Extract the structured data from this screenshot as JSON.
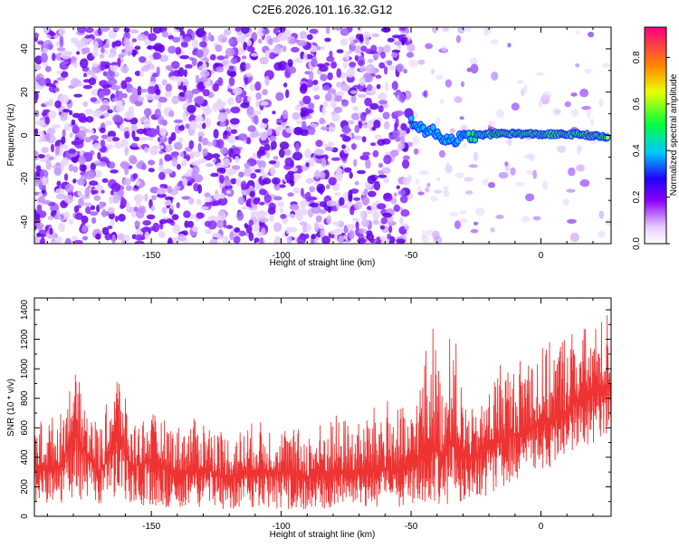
{
  "title": "C2E6.2026.101.16.32.G12",
  "chart_data": [
    {
      "type": "heatmap",
      "name": "spectrogram",
      "xlabel": "Height of straight line (km)",
      "ylabel": "Frequency (Hz)",
      "xlim": [
        -195,
        27
      ],
      "ylim": [
        -50,
        50
      ],
      "xticks": [
        "-150",
        "-100",
        "-50",
        "0"
      ],
      "yticks": [
        "40",
        "20",
        "0",
        "-20",
        "-40"
      ],
      "colorbar": {
        "label": "Normalized spectral amplitude",
        "range": [
          0,
          0.93
        ],
        "ticks": [
          "0.0",
          "0.2",
          "0.4",
          "0.6",
          "0.8"
        ]
      },
      "signal_track": [
        {
          "x": -50,
          "y": 7
        },
        {
          "x": -46,
          "y": 3
        },
        {
          "x": -42,
          "y": 2
        },
        {
          "x": -38,
          "y": -1
        },
        {
          "x": -34,
          "y": -2
        },
        {
          "x": -30,
          "y": -1
        },
        {
          "x": -25,
          "y": 0
        },
        {
          "x": -15,
          "y": 1
        },
        {
          "x": 0,
          "y": 0.5
        },
        {
          "x": 15,
          "y": 0.5
        },
        {
          "x": 26,
          "y": -1
        }
      ]
    },
    {
      "type": "line",
      "name": "snr",
      "xlabel": "Height of straight line (km)",
      "ylabel": "SNR (10 * v/v)",
      "xlim": [
        -195,
        27
      ],
      "ylim": [
        0,
        1480
      ],
      "xticks": [
        "-150",
        "-100",
        "-50",
        "0"
      ],
      "yticks": [
        "0",
        "200",
        "400",
        "600",
        "800",
        "1000",
        "1200",
        "1400"
      ],
      "color": "#ee3333",
      "series": [
        {
          "name": "SNR envelope",
          "x": [
            -195,
            -185,
            -180,
            -175,
            -170,
            -167,
            -163,
            -158,
            -150,
            -140,
            -130,
            -120,
            -110,
            -100,
            -90,
            -80,
            -70,
            -60,
            -55,
            -50,
            -46,
            -42,
            -38,
            -34,
            -30,
            -25,
            -20,
            -15,
            -10,
            -5,
            0,
            5,
            10,
            15,
            20,
            27
          ],
          "upper": [
            650,
            700,
            1000,
            800,
            600,
            780,
            1020,
            650,
            700,
            620,
            680,
            560,
            650,
            620,
            580,
            700,
            640,
            820,
            760,
            700,
            1000,
            1370,
            900,
            1350,
            830,
            680,
            880,
            1100,
            1000,
            1200,
            1150,
            1200,
            1280,
            1300,
            1270,
            1440
          ],
          "mean": [
            320,
            340,
            600,
            420,
            300,
            380,
            600,
            330,
            380,
            300,
            320,
            270,
            310,
            300,
            270,
            300,
            290,
            320,
            300,
            330,
            450,
            480,
            420,
            520,
            400,
            420,
            480,
            520,
            560,
            580,
            620,
            660,
            720,
            800,
            850,
            880
          ],
          "lower": [
            100,
            80,
            130,
            100,
            80,
            90,
            120,
            80,
            70,
            60,
            60,
            50,
            60,
            50,
            40,
            50,
            50,
            60,
            50,
            70,
            80,
            100,
            80,
            90,
            80,
            100,
            150,
            200,
            250,
            280,
            300,
            350,
            400,
            450,
            500,
            550
          ]
        }
      ]
    }
  ]
}
